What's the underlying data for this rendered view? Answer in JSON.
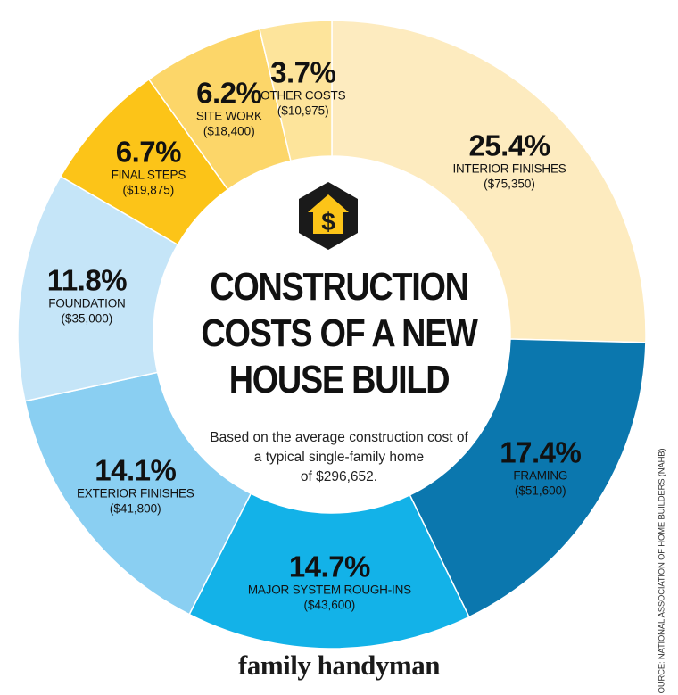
{
  "chart_data": {
    "type": "pie",
    "style": "donut",
    "title_lines": [
      "CONSTRUCTION",
      "COSTS OF A NEW",
      "HOUSE BUILD"
    ],
    "subtitle_lines": [
      "Based on the average construction cost of",
      "a typical single-family home",
      "of $296,652."
    ],
    "slices": [
      {
        "label": "INTERIOR FINISHES",
        "percent": 25.4,
        "percent_text": "25.4%",
        "amount": "($75,350)",
        "color": "#fdebbf"
      },
      {
        "label": "FRAMING",
        "percent": 17.4,
        "percent_text": "17.4%",
        "amount": "($51,600)",
        "color": "#0b77ae"
      },
      {
        "label": "MAJOR SYSTEM ROUGH-INS",
        "percent": 14.7,
        "percent_text": "14.7%",
        "amount": "($43,600)",
        "color": "#13b2e8"
      },
      {
        "label": "EXTERIOR FINISHES",
        "percent": 14.1,
        "percent_text": "14.1%",
        "amount": "($41,800)",
        "color": "#8acff2"
      },
      {
        "label": "FOUNDATION",
        "percent": 11.8,
        "percent_text": "11.8%",
        "amount": "($35,000)",
        "color": "#c5e5f8"
      },
      {
        "label": "FINAL STEPS",
        "percent": 6.7,
        "percent_text": "6.7%",
        "amount": "($19,875)",
        "color": "#fcc418"
      },
      {
        "label": "SITE WORK",
        "percent": 6.2,
        "percent_text": "6.2%",
        "amount": "($18,400)",
        "color": "#fcd669"
      },
      {
        "label": "OTHER COSTS",
        "percent": 3.7,
        "percent_text": "3.7%",
        "amount": "($10,975)",
        "color": "#fde49b"
      }
    ],
    "total": "$296,652"
  },
  "icon": {
    "name": "house-dollar-icon",
    "glyph": "$",
    "hex_color": "#1a1a1a",
    "house_color": "#fcc418"
  },
  "source_note": "OURCE: NATIONAL ASSOCIATION OF HOME BUILDERS (NAHB)",
  "brand": "family handyman"
}
